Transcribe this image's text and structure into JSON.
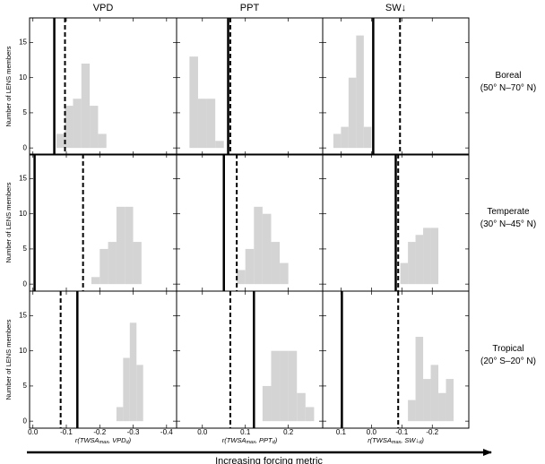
{
  "columns": [
    {
      "title": "VPD",
      "x_label": [
        "r(TWSA",
        "max",
        ", VPD",
        "d",
        ")"
      ]
    },
    {
      "title": "PPT",
      "x_label": [
        "r(TWSA",
        "max",
        ", PPT",
        "d",
        ")"
      ]
    },
    {
      "title": "SW↓",
      "x_label": [
        "r(TWSA",
        "max",
        ", SW↓",
        "d",
        ")"
      ]
    }
  ],
  "rows": [
    {
      "label": [
        "Boreal",
        "(50° N–70° N)"
      ]
    },
    {
      "label": [
        "Temperate",
        "(30° N–45° N)"
      ]
    },
    {
      "label": [
        "Tropical",
        "(20° S–20° N)"
      ]
    }
  ],
  "y_label": "Number of LENS members",
  "bottom_label": "Increasing forcing metric",
  "chart_data": [
    {
      "type": "histogram",
      "bins": [
        -0.07,
        -0.095,
        -0.12,
        -0.145,
        -0.17,
        -0.195,
        -0.22
      ],
      "values": [
        2,
        6,
        7,
        12,
        6,
        2
      ],
      "color": "#d4d4d4",
      "xlim": [
        0.01,
        -0.43
      ],
      "xticks": [
        {
          "value": 0,
          "label": "0.0"
        },
        -0.1,
        -0.2,
        -0.3,
        -0.4
      ],
      "ylim": [
        -1,
        18.5
      ],
      "yticks": [
        0,
        5,
        10,
        15
      ],
      "lines": [
        {
          "style": "solid",
          "value": -0.064
        },
        {
          "style": "dashed",
          "value": -0.096
        }
      ]
    },
    {
      "type": "histogram",
      "bins": [
        -0.03,
        -0.01,
        0.01,
        0.03,
        0.05
      ],
      "values": [
        13,
        7,
        7,
        1
      ],
      "color": "#d4d4d4",
      "xlim": [
        -0.06,
        0.28
      ],
      "xticks": [
        {
          "value": 0,
          "label": "0.0"
        },
        0.1,
        0.2
      ],
      "ylim": [
        -1,
        18.5
      ],
      "yticks": [
        0,
        5,
        10,
        15
      ],
      "lines": [
        {
          "style": "solid",
          "value": 0.06
        },
        {
          "style": "dashed",
          "value": 0.065
        }
      ]
    },
    {
      "type": "histogram",
      "bins": [
        0.125,
        0.1,
        0.075,
        0.05,
        0.025,
        0.0
      ],
      "values": [
        2,
        3,
        10,
        16,
        3
      ],
      "color": "#d4d4d4",
      "xlim": [
        0.16,
        -0.32
      ],
      "xticks": [
        0.1,
        {
          "value": 0,
          "label": "0.0"
        },
        -0.1,
        -0.2
      ],
      "ylim": [
        -1,
        18.5
      ],
      "yticks": [
        0,
        5,
        10,
        15
      ],
      "lines": [
        {
          "style": "solid",
          "value": -0.006
        },
        {
          "style": "dashed",
          "value": -0.094
        }
      ]
    },
    {
      "type": "histogram",
      "bins": [
        -0.175,
        -0.2,
        -0.225,
        -0.25,
        -0.275,
        -0.3,
        -0.325
      ],
      "values": [
        1,
        5,
        6,
        11,
        11,
        6
      ],
      "color": "#d4d4d4",
      "xlim": [
        0.01,
        -0.43
      ],
      "xticks": [
        {
          "value": 0,
          "label": "0.0"
        },
        -0.1,
        -0.2,
        -0.3,
        -0.4
      ],
      "ylim": [
        -1,
        18.5
      ],
      "yticks": [
        0,
        5,
        10,
        15
      ],
      "lines": [
        {
          "style": "solid",
          "value": -0.005
        },
        {
          "style": "dashed",
          "value": -0.15
        }
      ]
    },
    {
      "type": "histogram",
      "bins": [
        0.08,
        0.1,
        0.12,
        0.14,
        0.16,
        0.18,
        0.2
      ],
      "values": [
        2,
        5,
        11,
        10,
        6,
        3
      ],
      "color": "#d4d4d4",
      "xlim": [
        -0.06,
        0.28
      ],
      "xticks": [
        {
          "value": 0,
          "label": "0.0"
        },
        0.1,
        0.2
      ],
      "ylim": [
        -1,
        18.5
      ],
      "yticks": [
        0,
        5,
        10,
        15
      ],
      "lines": [
        {
          "style": "solid",
          "value": 0.05
        },
        {
          "style": "dashed",
          "value": 0.08
        }
      ]
    },
    {
      "type": "histogram",
      "bins": [
        -0.095,
        -0.12,
        -0.145,
        -0.17,
        -0.195,
        -0.22
      ],
      "values": [
        3,
        6,
        7,
        8,
        8
      ],
      "color": "#d4d4d4",
      "xlim": [
        0.16,
        -0.32
      ],
      "xticks": [
        0.1,
        {
          "value": 0,
          "label": "0.0"
        },
        -0.1,
        -0.2
      ],
      "ylim": [
        -1,
        18.5
      ],
      "yticks": [
        0,
        5,
        10,
        15
      ],
      "lines": [
        {
          "style": "solid",
          "value": -0.08
        },
        {
          "style": "dashed",
          "value": -0.088
        }
      ]
    },
    {
      "type": "histogram",
      "bins": [
        -0.25,
        -0.27,
        -0.29,
        -0.31,
        -0.33
      ],
      "values": [
        2,
        9,
        14,
        8
      ],
      "color": "#d4d4d4",
      "xlim": [
        0.01,
        -0.43
      ],
      "xticks": [
        {
          "value": 0,
          "label": "0.0"
        },
        -0.1,
        -0.2,
        -0.3,
        -0.4
      ],
      "ylim": [
        -1,
        18.5
      ],
      "yticks": [
        0,
        5,
        10,
        15
      ],
      "lines": [
        {
          "style": "solid",
          "value": -0.133
        },
        {
          "style": "dashed",
          "value": -0.083
        }
      ]
    },
    {
      "type": "histogram",
      "bins": [
        0.14,
        0.16,
        0.18,
        0.2,
        0.22,
        0.24,
        0.26
      ],
      "values": [
        5,
        10,
        10,
        10,
        4,
        2
      ],
      "color": "#d4d4d4",
      "xlim": [
        -0.06,
        0.28
      ],
      "xticks": [
        {
          "value": 0,
          "label": "0.0"
        },
        0.1,
        0.2
      ],
      "ylim": [
        -1,
        18.5
      ],
      "yticks": [
        0,
        5,
        10,
        15
      ],
      "lines": [
        {
          "style": "solid",
          "value": 0.12
        },
        {
          "style": "dashed",
          "value": 0.065
        }
      ]
    },
    {
      "type": "histogram",
      "bins": [
        -0.12,
        -0.145,
        -0.17,
        -0.195,
        -0.22,
        -0.245,
        -0.27
      ],
      "values": [
        3,
        12,
        6,
        8,
        4,
        6
      ],
      "color": "#d4d4d4",
      "xlim": [
        0.16,
        -0.32
      ],
      "xticks": [
        0.1,
        {
          "value": 0,
          "label": "0.0"
        },
        -0.1,
        -0.2
      ],
      "ylim": [
        -1,
        18.5
      ],
      "yticks": [
        0,
        5,
        10,
        15
      ],
      "lines": [
        {
          "style": "solid",
          "value": 0.097
        },
        {
          "style": "dashed",
          "value": -0.088
        }
      ]
    }
  ]
}
